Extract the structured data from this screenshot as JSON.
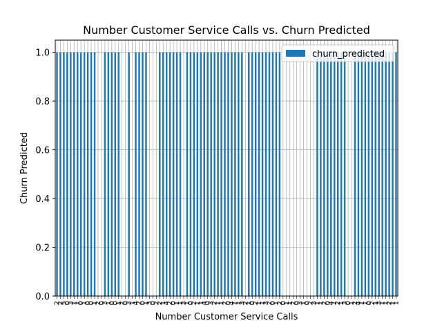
{
  "chart_data": {
    "type": "bar",
    "title": "Number Customer Service Calls vs. Churn Predicted",
    "xlabel": "Number Customer Service Calls",
    "ylabel": "Churn Predicted",
    "categories": [
      "2",
      "2",
      "5",
      "0",
      "3",
      "1",
      "1",
      "0",
      "1",
      "0",
      "0",
      "1",
      "2",
      "0",
      "3",
      "1",
      "0",
      "0",
      "1",
      "2",
      "0",
      "3",
      "1",
      "4",
      "2",
      "0",
      "1",
      "3",
      "0",
      "2",
      "2",
      "1",
      "4",
      "2",
      "0",
      "1",
      "1",
      "3",
      "1",
      "0",
      "2",
      "1",
      "1",
      "4",
      "0",
      "3",
      "2",
      "1",
      "1",
      "2",
      "0",
      "4",
      "1",
      "1",
      "3",
      "2",
      "1",
      "0",
      "2",
      "1",
      "1",
      "3",
      "2",
      "0",
      "1",
      "2",
      "0",
      "1",
      "1",
      "2",
      "0",
      "3",
      "1",
      "0",
      "2",
      "3",
      "1",
      "1",
      "2",
      "0",
      "4",
      "1",
      "2",
      "1",
      "3",
      "0",
      "1",
      "2",
      "4",
      "1",
      "1",
      "0",
      "2",
      "1",
      "3",
      "1",
      "1",
      "2",
      "1",
      "1"
    ],
    "series": [
      {
        "name": "churn_predicted",
        "color": "#1f77b4",
        "values": [
          1,
          1,
          1,
          1,
          1,
          1,
          1,
          1,
          1,
          1,
          1,
          1,
          0,
          0,
          1,
          1,
          1,
          1,
          1,
          0,
          0,
          1,
          0,
          1,
          1,
          1,
          1,
          0,
          0,
          0,
          1,
          1,
          1,
          1,
          1,
          1,
          1,
          0,
          1,
          1,
          1,
          1,
          1,
          1,
          1,
          1,
          1,
          1,
          1,
          1,
          1,
          1,
          1,
          1,
          1,
          0,
          1,
          1,
          1,
          1,
          1,
          1,
          1,
          1,
          1,
          1,
          0,
          0,
          0,
          0,
          0,
          0,
          0,
          0,
          0,
          0,
          1,
          1,
          1,
          1,
          1,
          1,
          1,
          1,
          1,
          0,
          0,
          1,
          1,
          1,
          1,
          1,
          1,
          1,
          1,
          1,
          1,
          1,
          1,
          1
        ]
      }
    ],
    "ylim": [
      0,
      1.05
    ],
    "yticks": [
      {
        "value": 0,
        "label": "0.0"
      },
      0.2,
      0.4,
      0.6,
      0.8,
      {
        "value": 1,
        "label": "1.0"
      }
    ],
    "grid": true,
    "legend": "upper right"
  }
}
